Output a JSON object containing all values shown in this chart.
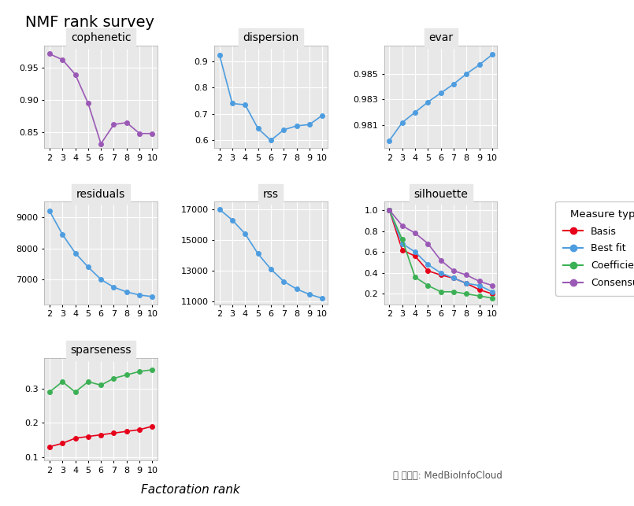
{
  "title": "NMF rank survey",
  "xlabel": "Factoration rank",
  "ranks": [
    2,
    3,
    4,
    5,
    6,
    7,
    8,
    9,
    10
  ],
  "cophenetic": {
    "title": "cophenetic",
    "Consensus": [
      0.972,
      0.963,
      0.94,
      0.895,
      0.832,
      0.862,
      0.865,
      0.848,
      0.848
    ]
  },
  "dispersion": {
    "title": "dispersion",
    "Best fit": [
      0.925,
      0.74,
      0.735,
      0.645,
      0.6,
      0.64,
      0.655,
      0.66,
      0.695
    ]
  },
  "evar": {
    "title": "evar",
    "Best fit": [
      0.9798,
      0.9812,
      0.982,
      0.9828,
      0.9835,
      0.9842,
      0.985,
      0.9857,
      0.9865
    ]
  },
  "residuals": {
    "title": "residuals",
    "Best fit": [
      9200,
      8450,
      7850,
      7400,
      7000,
      6750,
      6600,
      6500,
      6450
    ]
  },
  "rss": {
    "title": "rss",
    "Best fit": [
      17000,
      16300,
      15400,
      14100,
      13100,
      12300,
      11800,
      11450,
      11200
    ]
  },
  "silhouette": {
    "title": "silhouette",
    "Basis": [
      1.0,
      0.62,
      0.56,
      0.42,
      0.38,
      0.35,
      0.3,
      0.24,
      0.2
    ],
    "Best fit": [
      1.0,
      0.68,
      0.6,
      0.48,
      0.4,
      0.35,
      0.3,
      0.28,
      0.22
    ],
    "Coefficients": [
      1.0,
      0.72,
      0.36,
      0.28,
      0.22,
      0.22,
      0.2,
      0.18,
      0.16
    ],
    "Consensus": [
      1.0,
      0.85,
      0.78,
      0.68,
      0.52,
      0.42,
      0.38,
      0.32,
      0.28
    ]
  },
  "sparseness": {
    "title": "sparseness",
    "Basis": [
      0.13,
      0.14,
      0.155,
      0.16,
      0.165,
      0.17,
      0.175,
      0.18,
      0.19
    ],
    "Coefficients": [
      0.29,
      0.32,
      0.29,
      0.32,
      0.31,
      0.33,
      0.34,
      0.35,
      0.355
    ]
  },
  "colors": {
    "Basis": "#e6001a",
    "Best fit": "#4d9de0",
    "Coefficients": "#3cb054",
    "Consensus": "#9b59b6"
  },
  "legend_entries": [
    "Basis",
    "Best fit",
    "Coefficients",
    "Consensus"
  ],
  "background_subplot": "#e8e8e8",
  "grid_color": "#ffffff",
  "title_fontsize": 14,
  "subplot_title_fontsize": 10,
  "tick_fontsize": 8,
  "legend_fontsize": 9,
  "watermark": "微信号: MedBioInfoCloud"
}
